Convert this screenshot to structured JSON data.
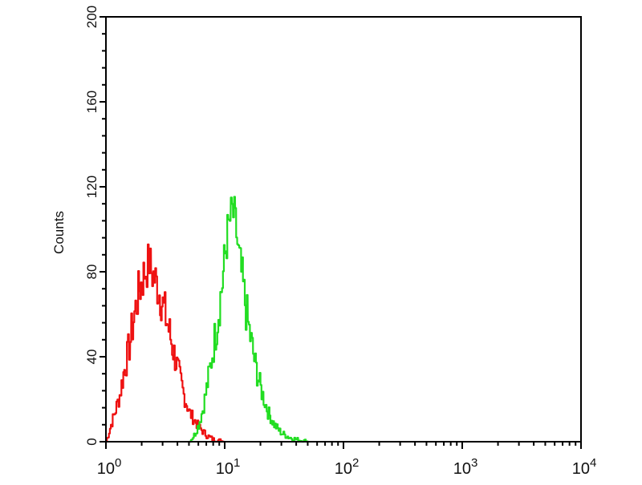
{
  "chart_data": {
    "type": "line",
    "title": "",
    "xlabel": "",
    "ylabel": "Counts",
    "x_scale": "log",
    "xlim": [
      1,
      10000
    ],
    "ylim": [
      0,
      200
    ],
    "x_ticks": [
      {
        "base": "10",
        "exp": "0",
        "value": 1
      },
      {
        "base": "10",
        "exp": "1",
        "value": 10
      },
      {
        "base": "10",
        "exp": "2",
        "value": 100
      },
      {
        "base": "10",
        "exp": "3",
        "value": 1000
      },
      {
        "base": "10",
        "exp": "4",
        "value": 10000
      }
    ],
    "y_ticks": [
      "0",
      "40",
      "80",
      "120",
      "160",
      "200"
    ],
    "grid": false,
    "legend": "none",
    "series": [
      {
        "color": "#ee1111",
        "x": [
          1.0,
          1.1,
          1.2,
          1.3,
          1.4,
          1.5,
          1.6,
          1.7,
          1.8,
          1.9,
          2.0,
          2.1,
          2.2,
          2.3,
          2.4,
          2.6,
          2.8,
          3.0,
          3.3,
          3.6,
          4.0,
          4.5,
          5.0,
          6.0,
          7.0,
          8.0,
          10.0
        ],
        "y": [
          0,
          8,
          15,
          22,
          32,
          40,
          48,
          58,
          65,
          72,
          75,
          80,
          82,
          85,
          80,
          76,
          70,
          64,
          55,
          45,
          34,
          22,
          14,
          7,
          3,
          1,
          0
        ]
      },
      {
        "color": "#22dd22",
        "x": [
          5.0,
          5.5,
          6.0,
          6.5,
          7.0,
          7.5,
          8.0,
          8.5,
          9.0,
          9.5,
          10.0,
          10.5,
          11.0,
          11.5,
          12.0,
          12.5,
          13.0,
          14.0,
          15.0,
          16.0,
          18.0,
          20.0,
          23.0,
          26.0,
          30.0,
          35.0,
          40.0,
          50.0
        ],
        "y": [
          0,
          3,
          8,
          15,
          25,
          35,
          45,
          55,
          65,
          75,
          88,
          98,
          104,
          108,
          105,
          98,
          88,
          76,
          62,
          52,
          36,
          25,
          14,
          8,
          4,
          2,
          1,
          0
        ]
      }
    ]
  }
}
